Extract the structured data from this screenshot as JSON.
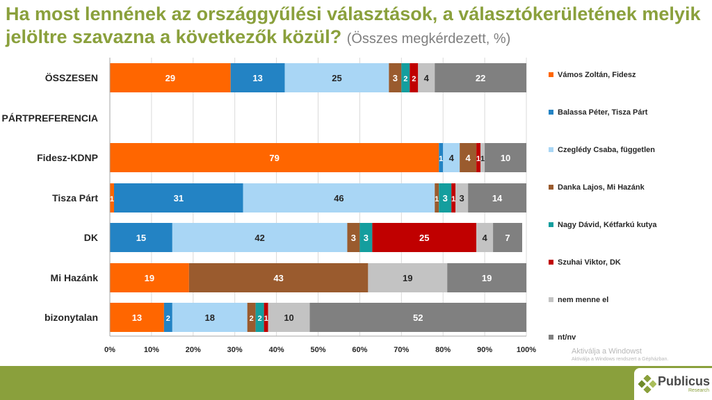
{
  "title": {
    "main": "Ha most lennének az országgyűlési választások, a választókerületének melyik jelöltre szavazna a következők közül?",
    "sub": "(Összes megkérdezett, %)"
  },
  "chart_data": {
    "type": "bar",
    "orientation": "horizontal",
    "stacked": "percent",
    "categories": [
      "ÖSSZESEN",
      "PÁRTPREFERENCIA",
      "Fidesz-KDNP",
      "Tisza Párt",
      "DK",
      "Mi Hazánk",
      "bizonytalan"
    ],
    "series": [
      {
        "name": "Vámos Zoltán, Fidesz",
        "color": "#ff6600",
        "values": [
          29,
          null,
          79,
          1,
          0,
          19,
          13
        ]
      },
      {
        "name": "Balassa Péter, Tisza Párt",
        "color": "#2383c4",
        "values": [
          13,
          null,
          1,
          31,
          15,
          0,
          2
        ]
      },
      {
        "name": "Czeglédy Csaba, független",
        "color": "#a9d6f5",
        "values": [
          25,
          null,
          4,
          46,
          42,
          0,
          18
        ]
      },
      {
        "name": "Danka Lajos, Mi Hazánk",
        "color": "#9a5b2e",
        "values": [
          3,
          null,
          4,
          1,
          3,
          43,
          2
        ]
      },
      {
        "name": "Nagy Dávid, Kétfarkú kutya",
        "color": "#149e9e",
        "values": [
          2,
          null,
          0,
          3,
          3,
          0,
          2
        ]
      },
      {
        "name": "Szuhai Viktor, DK",
        "color": "#c00000",
        "values": [
          2,
          null,
          1,
          1,
          25,
          0,
          1
        ]
      },
      {
        "name": "nem menne el",
        "color": "#c3c3c3",
        "values": [
          4,
          null,
          1,
          3,
          4,
          19,
          10
        ]
      },
      {
        "name": "nt/nv",
        "color": "#808080",
        "values": [
          22,
          null,
          10,
          14,
          7,
          19,
          52
        ]
      }
    ],
    "data_labels": [
      [
        "29",
        "13",
        "25",
        "3",
        "2",
        "2",
        "4",
        "22"
      ],
      [],
      [
        "79",
        "1",
        "4",
        "4",
        "1",
        "1",
        "10"
      ],
      [
        "1",
        "31",
        "46",
        "1",
        "3",
        "1",
        "3",
        "14"
      ],
      [
        "15",
        "42",
        "3",
        "3",
        "25",
        "4",
        "7"
      ],
      [
        "19",
        "43",
        "19",
        "19"
      ],
      [
        "13",
        "2",
        "18",
        "2",
        "2",
        "1",
        "10",
        "52"
      ]
    ],
    "xlim": [
      0,
      100
    ],
    "xticks": [
      "0%",
      "10%",
      "20%",
      "30%",
      "40%",
      "50%",
      "60%",
      "70%",
      "80%",
      "90%",
      "100%"
    ],
    "legend_position": "right"
  },
  "watermark": {
    "line1": "Aktiválja a Windowst",
    "line2": "Aktiválja a Windows rendszert a Gépházban."
  },
  "logo": {
    "name": "Publicus",
    "sub": "Research"
  },
  "colors": {
    "brand_green": "#8aa03c"
  }
}
